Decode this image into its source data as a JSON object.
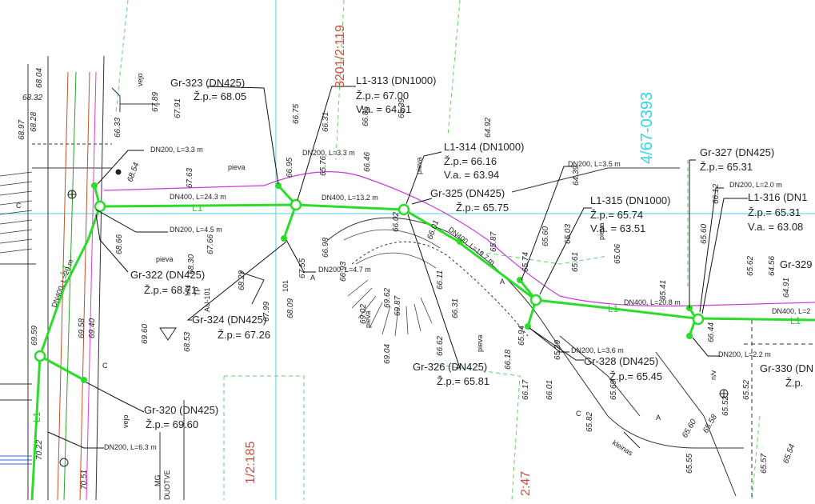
{
  "map": {
    "parcel_labels": [
      {
        "id": "p1",
        "text": "3201/2:119",
        "color": "#d04a3a"
      },
      {
        "id": "p2",
        "text": "4/67-0393",
        "color": "#35d6e6"
      },
      {
        "id": "p3",
        "text": "1/2:185",
        "color": "#d04a3a"
      },
      {
        "id": "p4",
        "text": "2:47",
        "color": "#d04a3a"
      }
    ],
    "nodes": [
      {
        "id": "gr323",
        "name": "Gr-323  (DN425)",
        "zp": "Ž.p.= 68.05"
      },
      {
        "id": "l1313",
        "name": "L1-313  (DN1000)",
        "zp": "Ž.p.= 67.00",
        "va": "V.a. = 64.61"
      },
      {
        "id": "l1314",
        "name": "L1-314  (DN1000)",
        "zp": "Ž.p.= 66.16",
        "va": "V.a. = 63.94"
      },
      {
        "id": "gr325",
        "name": "Gr-325  (DN425)",
        "zp": "Ž.p.= 65.75"
      },
      {
        "id": "gr327",
        "name": "Gr-327  (DN425)",
        "zp": "Ž.p.= 65.31"
      },
      {
        "id": "l1315",
        "name": "L1-315  (DN1000)",
        "zp": "Ž.p.= 65.74",
        "va": "V.a. = 63.51"
      },
      {
        "id": "l1316",
        "name": "L1-316  (DN1",
        "zp": "Ž.p.= 65.31",
        "va": "V.a. = 63.08"
      },
      {
        "id": "gr322",
        "name": "Gr-322  (DN425)",
        "zp": "Ž.p.= 68.71"
      },
      {
        "id": "gr324",
        "name": "Gr-324  (DN425)",
        "zp": "Ž.p.= 67.26"
      },
      {
        "id": "gr326",
        "name": "Gr-326  (DN425)",
        "zp": "Ž.p.= 65.81"
      },
      {
        "id": "gr328",
        "name": "Gr-328  (DN425)",
        "zp": "Ž.p.= 65.45"
      },
      {
        "id": "gr320",
        "name": "Gr-320  (DN425)",
        "zp": "Ž.p.= 69.60"
      },
      {
        "id": "gr329",
        "name": "Gr-329"
      },
      {
        "id": "gr330",
        "name": "Gr-330  (DN",
        "zp": "Ž.p."
      }
    ],
    "pipe_labels": [
      "DN200, L=3.3 m",
      "DN200, L=3.3 m",
      "DN400, L=24.3 m",
      "DN400, L=13.2 m",
      "DN200, L=4.5 m",
      "DN200, L=4.7 m",
      "DN400, L=19.7 m",
      "DN200, L=3.5 m",
      "DN200, L=2.0 m",
      "DN400, L=20.8 m",
      "DN200, L=3.6 m",
      "DN200, L=2.2 m",
      "DN200, L=6.3 m",
      "DN400, L=2",
      "DN400, L=20 m"
    ],
    "line_label": "L1",
    "words": [
      "pieva",
      "pieva",
      "pieva",
      "pieva",
      "pieva",
      "pieva",
      "vejo",
      "vejo",
      "kleinas",
      "MN",
      "TP",
      "AU-101",
      "101",
      "A",
      "A",
      "A",
      "C",
      "C",
      "C",
      "n/v",
      "MG",
      "DUOTVE"
    ],
    "elevations": [
      "68.32",
      "67.89",
      "67.91",
      "66.33",
      "68.54",
      "67.63",
      "66.95",
      "66.31",
      "66.75",
      "66.85",
      "66.46",
      "65.39",
      "64.92",
      "65.76",
      "66.01",
      "66.02",
      "65.87",
      "64.39",
      "65.03",
      "65.60",
      "65.61",
      "65.74",
      "65.06",
      "65.60",
      "65.62",
      "64.56",
      "64.91",
      "65.41",
      "68.66",
      "68.30",
      "68.29",
      "67.66",
      "67.55",
      "66.98",
      "66.93",
      "68.09",
      "67.99",
      "69.02",
      "69.62",
      "69.87",
      "66.11",
      "66.31",
      "69.04",
      "66.62",
      "66.18",
      "65.94",
      "65.29",
      "66.17",
      "66.01",
      "65.52",
      "65.69",
      "65.82",
      "69.60",
      "69.58",
      "69.40",
      "69.59",
      "68.53",
      "70.51",
      "70.22",
      "65.55",
      "65.57",
      "65.54",
      "65.52",
      "65.58",
      "65.60",
      "66.12",
      "66.44",
      "68.04",
      "68.97",
      "68.28"
    ]
  }
}
